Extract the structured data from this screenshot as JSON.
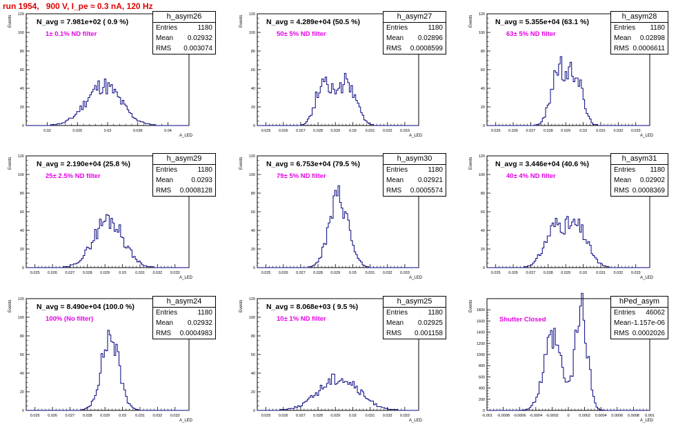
{
  "page_title": "run 1954,   900 V, I_pe ≈ 0.3 nA, 120 Hz",
  "chart_data": [
    {
      "type": "histogram",
      "name": "h_asym26",
      "stats": {
        "entries_label": "Entries",
        "entries": "1180",
        "mean_label": "Mean",
        "mean": "0.02932",
        "rms_label": "RMS",
        "rms": "0.003074"
      },
      "annotation": "N_avg = 7.981e+02 ( 0.9 %)",
      "filter_note": "1± 0.1% ND filter",
      "xlabel": "A_LED",
      "ylabel": "Events",
      "xlim": [
        0.0165,
        0.0435
      ],
      "ylim": [
        0,
        120
      ],
      "xticks": [
        0.02,
        0.025,
        0.03,
        0.035,
        0.04
      ],
      "xtick_labels": [
        "0.02",
        "0.025",
        "0.03",
        "0.035",
        "0.04"
      ],
      "yticks": [
        0,
        20,
        40,
        60,
        80,
        100,
        120
      ],
      "peaks": [
        {
          "mu": 0.0293,
          "sigma": 0.0029,
          "h": 43
        }
      ],
      "seed": 11
    },
    {
      "type": "histogram",
      "name": "h_asym27",
      "stats": {
        "entries_label": "Entries",
        "entries": "1180",
        "mean_label": "Mean",
        "mean": "0.02896",
        "rms_label": "RMS",
        "rms": "0.0008599"
      },
      "annotation": "N_avg = 4.289e+04 (50.5 %)",
      "filter_note": "50± 5% ND filter",
      "xlabel": "A_LED",
      "ylabel": "Events",
      "xlim": [
        0.0245,
        0.0338
      ],
      "ylim": [
        0,
        120
      ],
      "xticks": [
        0.025,
        0.026,
        0.027,
        0.028,
        0.029,
        0.03,
        0.031,
        0.032,
        0.033
      ],
      "xtick_labels": [
        "0.025",
        "0.026",
        "0.027",
        "0.028",
        "0.029",
        "0.03",
        "0.031",
        "0.032",
        "0.033"
      ],
      "yticks": [
        0,
        20,
        40,
        60,
        80,
        100,
        120
      ],
      "peaks": [
        {
          "mu": 0.02835,
          "sigma": 0.00045,
          "h": 50
        },
        {
          "mu": 0.0297,
          "sigma": 0.0005,
          "h": 46
        }
      ],
      "seed": 27
    },
    {
      "type": "histogram",
      "name": "h_asym28",
      "stats": {
        "entries_label": "Entries",
        "entries": "1180",
        "mean_label": "Mean",
        "mean": "0.02898",
        "rms_label": "RMS",
        "rms": "0.0006611"
      },
      "annotation": "N_avg = 5.355e+04 (63.1 %)",
      "filter_note": "63± 5% ND filter",
      "xlabel": "A_LED",
      "ylabel": "Events",
      "xlim": [
        0.0245,
        0.0338
      ],
      "ylim": [
        0,
        120
      ],
      "xticks": [
        0.025,
        0.026,
        0.027,
        0.028,
        0.029,
        0.03,
        0.031,
        0.032,
        0.033
      ],
      "xtick_labels": [
        "0.025",
        "0.026",
        "0.027",
        "0.028",
        "0.029",
        "0.03",
        "0.031",
        "0.032",
        "0.033"
      ],
      "yticks": [
        0,
        20,
        40,
        60,
        80,
        100,
        120
      ],
      "peaks": [
        {
          "mu": 0.02855,
          "sigma": 0.0004,
          "h": 60
        },
        {
          "mu": 0.02955,
          "sigma": 0.0004,
          "h": 56
        }
      ],
      "seed": 28
    },
    {
      "type": "histogram",
      "name": "h_asym29",
      "stats": {
        "entries_label": "Entries",
        "entries": "1180",
        "mean_label": "Mean",
        "mean": "0.0293",
        "rms_label": "RMS",
        "rms": "0.0008128"
      },
      "annotation": "N_avg = 2.190e+04 (25.8 %)",
      "filter_note": "25± 2.5% ND filter",
      "xlabel": "A_LED",
      "ylabel": "Events",
      "xlim": [
        0.0245,
        0.0338
      ],
      "ylim": [
        0,
        120
      ],
      "xticks": [
        0.025,
        0.026,
        0.027,
        0.028,
        0.029,
        0.03,
        0.031,
        0.032,
        0.033
      ],
      "xtick_labels": [
        "0.025",
        "0.026",
        "0.027",
        "0.028",
        "0.029",
        "0.03",
        "0.031",
        "0.032",
        "0.033"
      ],
      "yticks": [
        0,
        20,
        40,
        60,
        80,
        100,
        120
      ],
      "peaks": [
        {
          "mu": 0.0292,
          "sigma": 0.00085,
          "h": 52
        }
      ],
      "seed": 29
    },
    {
      "type": "histogram",
      "name": "h_asym30",
      "stats": {
        "entries_label": "Entries",
        "entries": "1180",
        "mean_label": "Mean",
        "mean": "0.02921",
        "rms_label": "RMS",
        "rms": "0.0005574"
      },
      "annotation": "N_avg = 6.753e+04 (79.5 %)",
      "filter_note": "79± 5% ND filter",
      "xlabel": "A_LED",
      "ylabel": "Events",
      "xlim": [
        0.0245,
        0.0338
      ],
      "ylim": [
        0,
        120
      ],
      "xticks": [
        0.025,
        0.026,
        0.027,
        0.028,
        0.029,
        0.03,
        0.031,
        0.032,
        0.033
      ],
      "xtick_labels": [
        "0.025",
        "0.026",
        "0.027",
        "0.028",
        "0.029",
        "0.03",
        "0.031",
        "0.032",
        "0.033"
      ],
      "yticks": [
        0,
        20,
        40,
        60,
        80,
        100,
        120
      ],
      "peaks": [
        {
          "mu": 0.0292,
          "sigma": 0.00055,
          "h": 76
        }
      ],
      "seed": 30
    },
    {
      "type": "histogram",
      "name": "h_asym31",
      "stats": {
        "entries_label": "Entries",
        "entries": "1180",
        "mean_label": "Mean",
        "mean": "0.02902",
        "rms_label": "RMS",
        "rms": "0.0008369"
      },
      "annotation": "N_avg = 3.446e+04 (40.6 %)",
      "filter_note": "40± 4% ND filter",
      "xlabel": "A_LED",
      "ylabel": "Events",
      "xlim": [
        0.0245,
        0.0338
      ],
      "ylim": [
        0,
        120
      ],
      "xticks": [
        0.025,
        0.026,
        0.027,
        0.028,
        0.029,
        0.03,
        0.031,
        0.032,
        0.033
      ],
      "xtick_labels": [
        "0.025",
        "0.026",
        "0.027",
        "0.028",
        "0.029",
        "0.03",
        "0.031",
        "0.032",
        "0.033"
      ],
      "yticks": [
        0,
        20,
        40,
        60,
        80,
        100,
        120
      ],
      "peaks": [
        {
          "mu": 0.0284,
          "sigma": 0.0006,
          "h": 42
        },
        {
          "mu": 0.0297,
          "sigma": 0.0006,
          "h": 40
        }
      ],
      "seed": 31
    },
    {
      "type": "histogram",
      "name": "h_asym24",
      "stats": {
        "entries_label": "Entries",
        "entries": "1180",
        "mean_label": "Mean",
        "mean": "0.02932",
        "rms_label": "RMS",
        "rms": "0.0004983"
      },
      "annotation": "N_avg = 8.490e+04 (100.0 %)",
      "filter_note": "100% (No filter)",
      "xlabel": "A_LED",
      "ylabel": "Events",
      "xlim": [
        0.0245,
        0.0338
      ],
      "ylim": [
        0,
        120
      ],
      "xticks": [
        0.025,
        0.026,
        0.027,
        0.028,
        0.029,
        0.03,
        0.031,
        0.032,
        0.033
      ],
      "xtick_labels": [
        "0.025",
        "0.026",
        "0.027",
        "0.028",
        "0.029",
        "0.03",
        "0.031",
        "0.032",
        "0.033"
      ],
      "yticks": [
        0,
        20,
        40,
        60,
        80,
        100,
        120
      ],
      "peaks": [
        {
          "mu": 0.0293,
          "sigma": 0.0005,
          "h": 80
        }
      ],
      "seed": 24
    },
    {
      "type": "histogram",
      "name": "h_asym25",
      "stats": {
        "entries_label": "Entries",
        "entries": "1180",
        "mean_label": "Mean",
        "mean": "0.02925",
        "rms_label": "RMS",
        "rms": "0.001158"
      },
      "annotation": "N_avg = 8.068e+03 ( 9.5 %)",
      "filter_note": "10± 1% ND filter",
      "xlabel": "A_LED",
      "ylabel": "Events",
      "xlim": [
        0.0245,
        0.0338
      ],
      "ylim": [
        0,
        120
      ],
      "xticks": [
        0.025,
        0.026,
        0.027,
        0.028,
        0.029,
        0.03,
        0.031,
        0.032,
        0.033
      ],
      "xtick_labels": [
        "0.025",
        "0.026",
        "0.027",
        "0.028",
        "0.029",
        "0.03",
        "0.031",
        "0.032",
        "0.033"
      ],
      "yticks": [
        0,
        20,
        40,
        60,
        80,
        100,
        120
      ],
      "peaks": [
        {
          "mu": 0.0292,
          "sigma": 0.00115,
          "h": 35
        }
      ],
      "seed": 25
    },
    {
      "type": "histogram",
      "name": "hPed_asym",
      "stats": {
        "entries_label": "Entries",
        "entries": "46062",
        "mean_label": "Mean",
        "mean": "-1.157e-06",
        "rms_label": "RMS",
        "rms": "0.0002026"
      },
      "annotation": "",
      "filter_note": "Shutter Closed",
      "xlabel": "A_LED",
      "ylabel": "Events",
      "xlim": [
        -0.001,
        0.001
      ],
      "ylim": [
        0,
        2000
      ],
      "xticks": [
        -0.001,
        -0.0008,
        -0.0006,
        -0.0004,
        -0.0002,
        0,
        0.0002,
        0.0004,
        0.0006,
        0.0008,
        0.001
      ],
      "xtick_labels": [
        "-0.001",
        "-0.0008",
        "-0.0006",
        "-0.0004",
        "-0.0002",
        "0",
        "0.0002",
        "0.0004",
        "0.0006",
        "0.0008",
        "0.001"
      ],
      "yticks": [
        0,
        200,
        400,
        600,
        800,
        1000,
        1200,
        1400,
        1600,
        1800
      ],
      "peaks": [
        {
          "mu": -0.00019,
          "sigma": 0.00011,
          "h": 1260
        },
        {
          "mu": 0.00016,
          "sigma": 7.5e-05,
          "h": 1800
        }
      ],
      "seed": 99
    }
  ]
}
